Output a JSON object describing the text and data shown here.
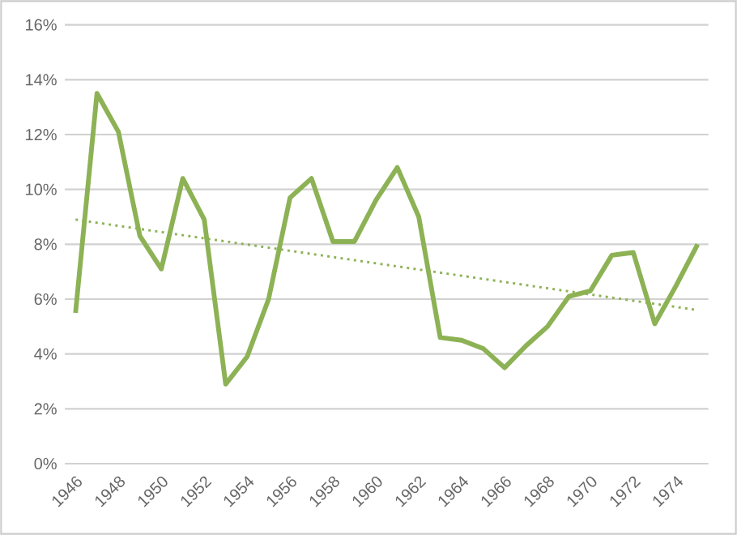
{
  "chart_data": {
    "type": "line",
    "xlim": [
      1945.5,
      1975.5
    ],
    "xticks": [
      1946,
      1948,
      1950,
      1952,
      1954,
      1956,
      1958,
      1960,
      1962,
      1964,
      1966,
      1968,
      1970,
      1972,
      1974
    ],
    "ylim": [
      0,
      16
    ],
    "yticks": [
      {
        "value": 0,
        "label": "0%"
      },
      {
        "value": 2,
        "label": "2%"
      },
      {
        "value": 4,
        "label": "4%"
      },
      {
        "value": 6,
        "label": "6%"
      },
      {
        "value": 8,
        "label": "8%"
      },
      {
        "value": 10,
        "label": "10%"
      },
      {
        "value": 12,
        "label": "12%"
      },
      {
        "value": 14,
        "label": "14%"
      },
      {
        "value": 16,
        "label": "16%"
      }
    ],
    "grid": "y",
    "marker": "none",
    "series": [
      {
        "color": "#8db255",
        "line_style": "solid",
        "x": [
          1946,
          1947,
          1948,
          1949,
          1950,
          1951,
          1952,
          1953,
          1954,
          1955,
          1956,
          1957,
          1958,
          1959,
          1960,
          1961,
          1962,
          1963,
          1964,
          1965,
          1966,
          1967,
          1968,
          1969,
          1970,
          1971,
          1972,
          1973,
          1974,
          1975
        ],
        "values": [
          5.5,
          13.5,
          12.1,
          8.3,
          7.1,
          10.4,
          8.9,
          2.9,
          3.9,
          6.0,
          9.7,
          10.4,
          8.1,
          8.1,
          9.6,
          10.8,
          9.0,
          4.6,
          4.5,
          4.2,
          3.5,
          4.3,
          5.0,
          6.1,
          6.3,
          7.6,
          7.7,
          5.1,
          6.5,
          8.0
        ]
      },
      {
        "color": "#8db255",
        "line_style": "dotted",
        "x": [
          1946,
          1975
        ],
        "values": [
          8.9,
          5.6
        ]
      }
    ]
  }
}
